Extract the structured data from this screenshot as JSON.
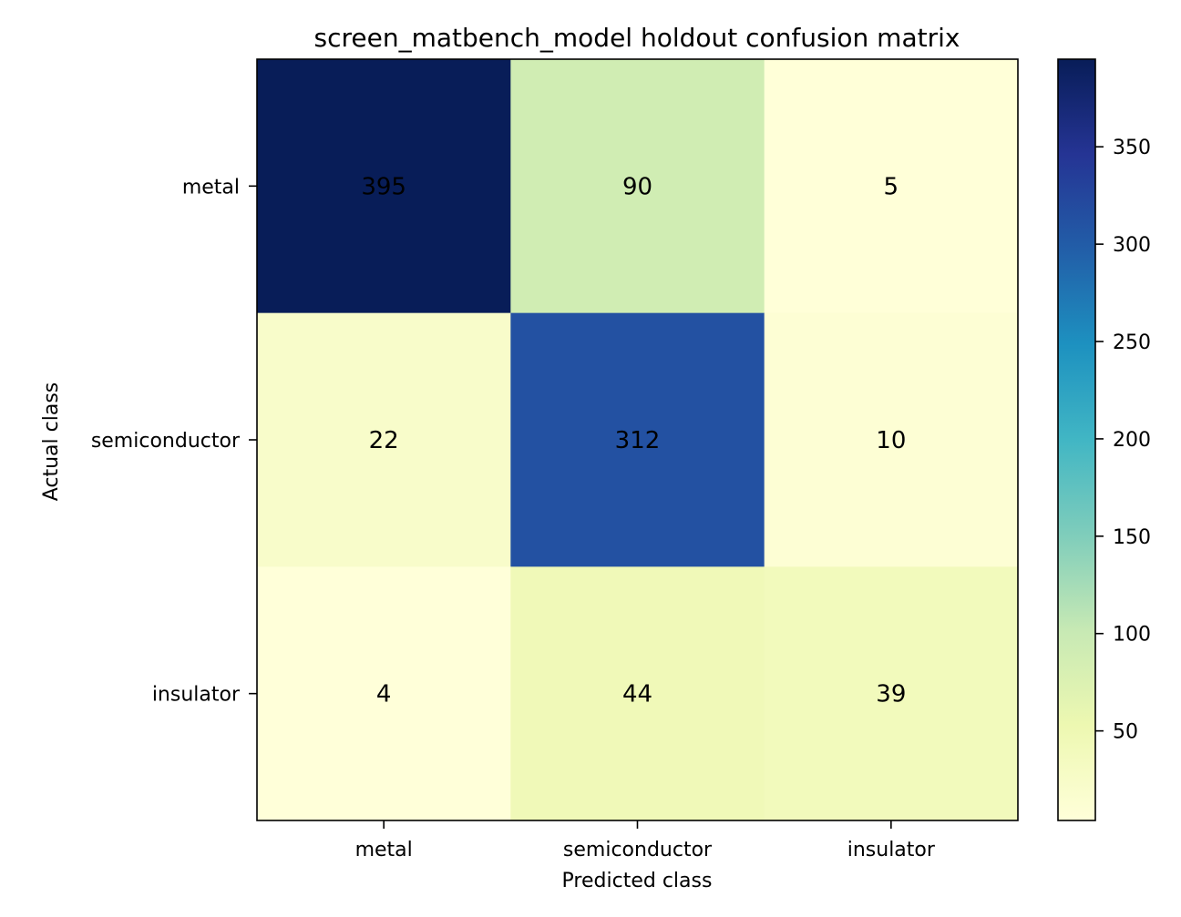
{
  "chart_data": {
    "type": "heatmap",
    "title": "screen_matbench_model holdout confusion matrix",
    "xlabel": "Predicted class",
    "ylabel": "Actual class",
    "x_categories": [
      "metal",
      "semiconductor",
      "insulator"
    ],
    "y_categories": [
      "metal",
      "semiconductor",
      "insulator"
    ],
    "values": [
      [
        395,
        90,
        5
      ],
      [
        22,
        312,
        10
      ],
      [
        4,
        44,
        39
      ]
    ],
    "colorscale": "YlGnBu",
    "colorbar": {
      "range": [
        4,
        395
      ],
      "ticks": [
        50,
        100,
        150,
        200,
        250,
        300,
        350
      ]
    },
    "grid": false
  }
}
